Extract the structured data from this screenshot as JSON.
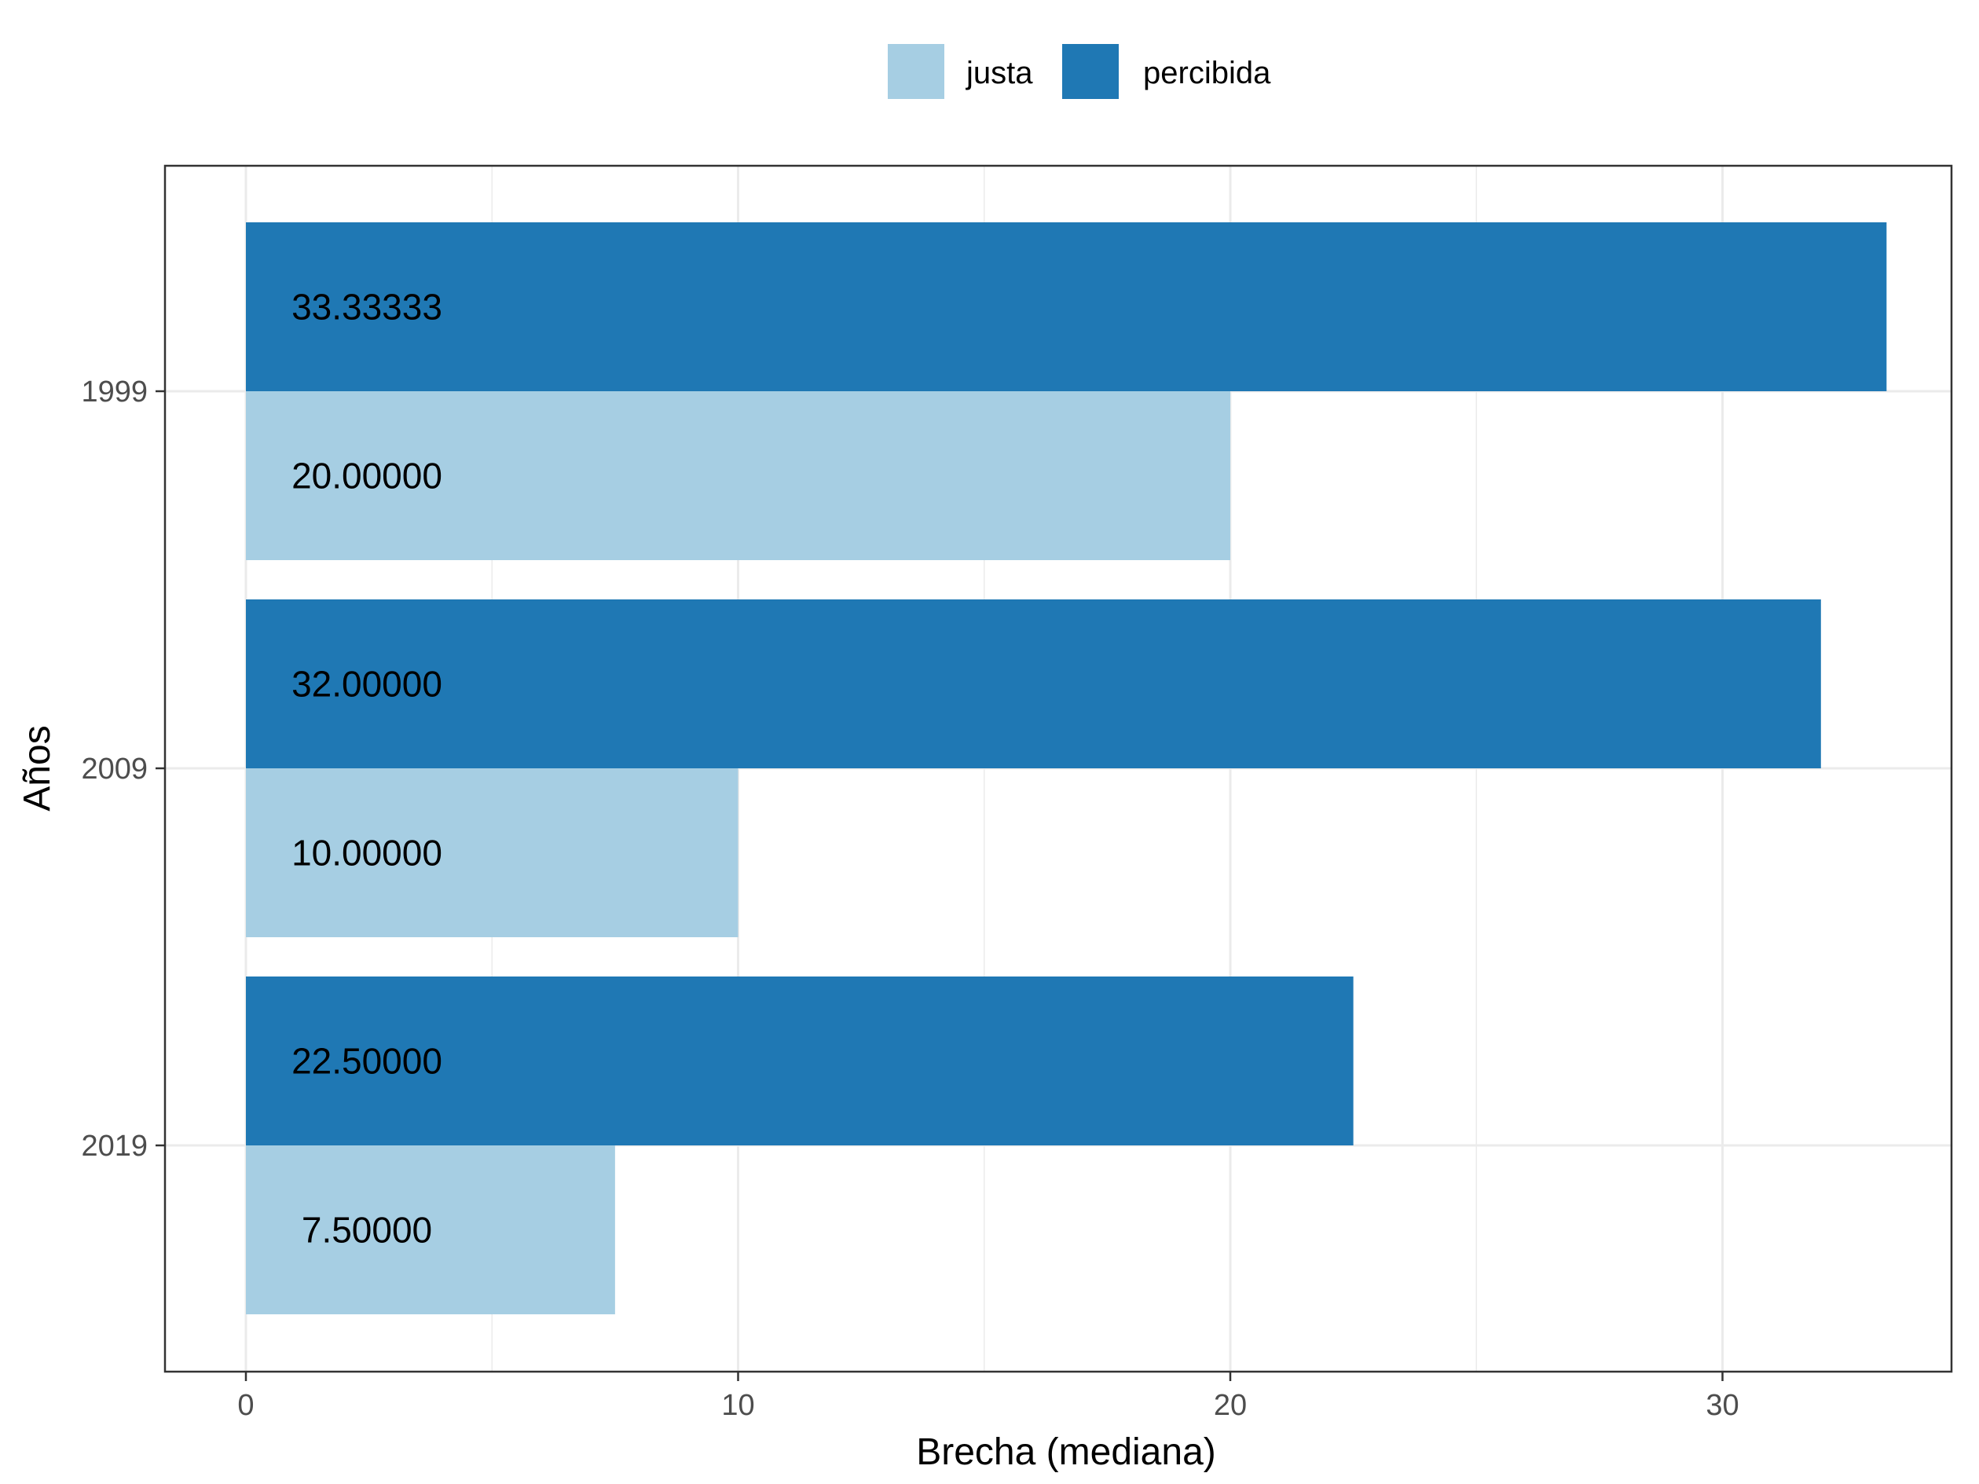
{
  "chart_data": {
    "type": "bar",
    "orientation": "horizontal",
    "categories": [
      "1999",
      "2009",
      "2019"
    ],
    "series": [
      {
        "name": "justa",
        "color": "#a6cee3",
        "values": [
          20.0,
          10.0,
          7.5
        ],
        "labels": [
          "20.00000",
          "10.00000",
          "7.50000"
        ]
      },
      {
        "name": "percibida",
        "color": "#1f78b4",
        "values": [
          33.33333,
          32.0,
          22.5
        ],
        "labels": [
          "33.33333",
          "32.00000",
          "22.50000"
        ]
      }
    ],
    "xlabel": "Brecha (mediana)",
    "ylabel": "Años",
    "xlim": [
      -1.65,
      35.0
    ],
    "xticks": [
      0,
      10,
      20,
      30
    ],
    "xtick_labels": [
      "0",
      "10",
      "20",
      "30"
    ],
    "grid": true,
    "legend_position": "top"
  }
}
